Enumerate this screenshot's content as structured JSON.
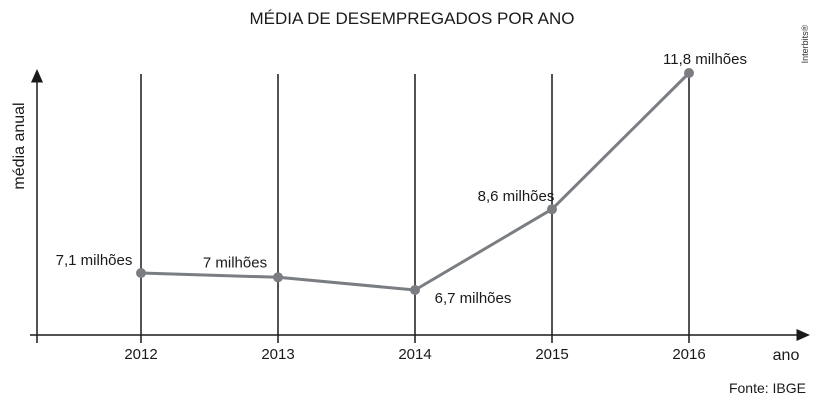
{
  "chart_data": {
    "type": "line",
    "title": "MÉDIA DE DESEMPREGADOS POR ANO",
    "xlabel": "ano",
    "ylabel": "média anual",
    "categories": [
      "2012",
      "2013",
      "2014",
      "2015",
      "2016"
    ],
    "series": [
      {
        "values": [
          7.1,
          7.0,
          6.7,
          8.6,
          11.8
        ],
        "labels": [
          "7,1 milhões",
          "7 milhões",
          "6,7 milhões",
          "8,6 milhões",
          "11,8 milhões"
        ]
      }
    ],
    "unit": "milhões",
    "grid": "vertical lines at each year",
    "line_color": "#7a7d82",
    "marker_color": "#7a7d82",
    "source": "Fonte: IBGE",
    "watermark": "Interbits®"
  }
}
